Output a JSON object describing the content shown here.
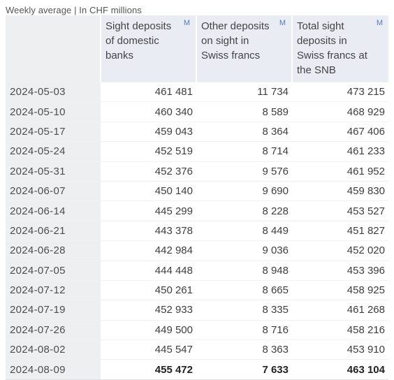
{
  "caption": "Weekly average | In CHF millions",
  "chart_data": {
    "type": "table",
    "title": "",
    "columns": [
      "Sight deposits of domestic banks",
      "Other deposits on sight in Swiss francs",
      "Total sight deposits in Swiss francs at the SNB"
    ],
    "column_link": "M",
    "rows": [
      {
        "date": "2024-05-03",
        "values": [
          "461 481",
          "11 734",
          "473 215"
        ]
      },
      {
        "date": "2024-05-10",
        "values": [
          "460 340",
          "8 589",
          "468 929"
        ]
      },
      {
        "date": "2024-05-17",
        "values": [
          "459 043",
          "8 364",
          "467 406"
        ]
      },
      {
        "date": "2024-05-24",
        "values": [
          "452 519",
          "8 714",
          "461 233"
        ]
      },
      {
        "date": "2024-05-31",
        "values": [
          "452 376",
          "9 576",
          "461 952"
        ]
      },
      {
        "date": "2024-06-07",
        "values": [
          "450 140",
          "9 690",
          "459 830"
        ]
      },
      {
        "date": "2024-06-14",
        "values": [
          "445 299",
          "8 228",
          "453 527"
        ]
      },
      {
        "date": "2024-06-21",
        "values": [
          "443 378",
          "8 449",
          "451 827"
        ]
      },
      {
        "date": "2024-06-28",
        "values": [
          "442 984",
          "9 036",
          "452 020"
        ]
      },
      {
        "date": "2024-07-05",
        "values": [
          "444 448",
          "8 948",
          "453 396"
        ]
      },
      {
        "date": "2024-07-12",
        "values": [
          "450 261",
          "8 665",
          "458 925"
        ]
      },
      {
        "date": "2024-07-19",
        "values": [
          "452 933",
          "8 335",
          "461 268"
        ]
      },
      {
        "date": "2024-07-26",
        "values": [
          "449 500",
          "8 716",
          "458 216"
        ]
      },
      {
        "date": "2024-08-02",
        "values": [
          "445 547",
          "8 363",
          "453 910"
        ]
      },
      {
        "date": "2024-08-09",
        "values": [
          "455 472",
          "7 633",
          "463 104"
        ]
      }
    ]
  },
  "colors": {
    "header_bg": "#e9ecf3",
    "date_bg": "#eeeff1",
    "link": "#5a79b8"
  }
}
